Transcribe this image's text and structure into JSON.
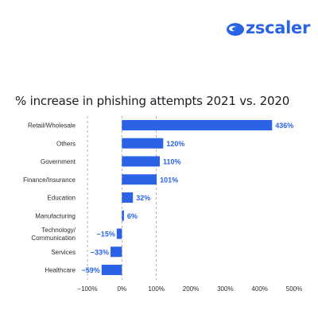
{
  "brand": {
    "name": "zscaler",
    "color": "#2b63e6"
  },
  "chart_data": {
    "type": "bar",
    "orientation": "horizontal",
    "title": "% increase in phishing attempts 2021 vs. 2020",
    "categories": [
      "Retail/Wholesale",
      "Others",
      "Government",
      "Finance/Insurance",
      "Education",
      "Manufacturing",
      "Technology/\nCommunication",
      "Services",
      "Healthcare"
    ],
    "values": [
      436,
      120,
      110,
      101,
      32,
      6,
      -15,
      -33,
      -59
    ],
    "value_labels": [
      "436%",
      "120%",
      "110%",
      "101%",
      "32%",
      "6%",
      "−15%",
      "−33%",
      "−59%"
    ],
    "xlim": [
      -100,
      500
    ],
    "xticks": [
      -100,
      0,
      100,
      200,
      300,
      400,
      500
    ],
    "xtick_labels": [
      "−100%",
      "0%",
      "100%",
      "200%",
      "300%",
      "400%",
      "500%"
    ],
    "grid": "dashed reference lines at −100%, 0% and 100%",
    "bar_color": "#2b63e6",
    "label_color": "#2b63e6"
  }
}
